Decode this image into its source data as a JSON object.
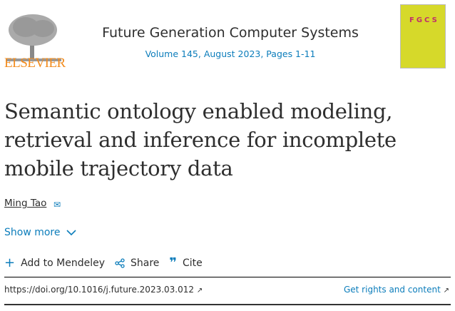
{
  "publisher": {
    "name": "ELSEVIER",
    "color": "#f28c1e"
  },
  "journal": {
    "title": "Future Generation Computer Systems",
    "volume_info": "Volume 145, August 2023, Pages 1-11",
    "cover_text": "FGCS"
  },
  "article": {
    "title": "Semantic ontology enabled modeling, retrieval and inference for incomplete mobile trajectory data"
  },
  "authors": [
    {
      "name": "Ming Tao",
      "icon": "envelope-icon"
    }
  ],
  "show_more": {
    "label": "Show more",
    "icon": "chevron-down-icon"
  },
  "actions": [
    {
      "label": "Add to Mendeley",
      "icon": "plus-icon"
    },
    {
      "label": "Share",
      "icon": "share-icon"
    },
    {
      "label": "Cite",
      "icon": "quote-icon"
    }
  ],
  "doi": {
    "label": "https://doi.org/10.1016/j.future.2023.03.012",
    "icon": "external-link-icon"
  },
  "rights": {
    "label": "Get rights and content",
    "icon": "external-link-icon"
  },
  "colors": {
    "link": "#0c7dbb",
    "text": "#2e2e2e"
  }
}
